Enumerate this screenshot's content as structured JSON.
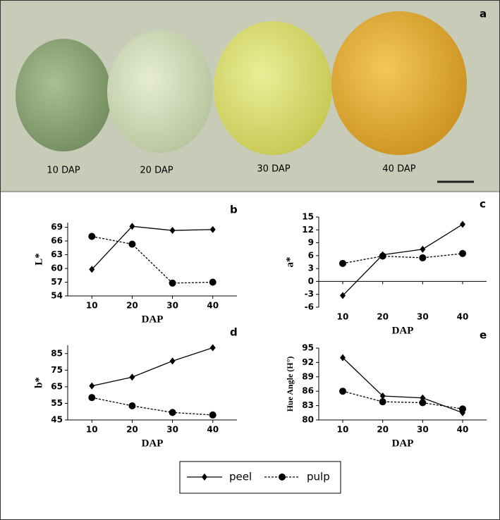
{
  "photo": {
    "label": "a",
    "captions": [
      "10 DAP",
      "20 DAP",
      "30 DAP",
      "40 DAP"
    ]
  },
  "chart_data": [
    {
      "type": "line",
      "label": "b",
      "y_label": "L*",
      "x_label": "DAP",
      "x": [
        10,
        20,
        30,
        40
      ],
      "xlim": [
        4,
        46
      ],
      "xticks": [
        10,
        20,
        30,
        40
      ],
      "ylim": [
        54,
        70
      ],
      "yticks": [
        54,
        57,
        60,
        63,
        66,
        69
      ],
      "series": [
        {
          "name": "peel",
          "color": "#000000",
          "marker": "diamond",
          "dash": "solid",
          "values": [
            59.8,
            69.2,
            68.3,
            68.5
          ]
        },
        {
          "name": "pulp",
          "color": "#000000",
          "marker": "circle",
          "dash": "dashed",
          "values": [
            67.0,
            65.3,
            56.8,
            57.0
          ]
        }
      ]
    },
    {
      "type": "line",
      "label": "c",
      "y_label": "a*",
      "x_label": "DAP",
      "x": [
        10,
        20,
        30,
        40
      ],
      "xlim": [
        4,
        46
      ],
      "xticks": [
        10,
        20,
        30,
        40
      ],
      "ylim": [
        -6,
        15
      ],
      "yticks": [
        -6,
        -3,
        0,
        3,
        6,
        9,
        12,
        15
      ],
      "series": [
        {
          "color": "#000000",
          "marker": "diamond",
          "dash": "solid",
          "values": [
            -3.3,
            6.2,
            7.5,
            13.3
          ]
        },
        {
          "color": "#000000",
          "marker": "circle",
          "dash": "dashed",
          "values": [
            4.2,
            5.9,
            5.5,
            6.5
          ]
        }
      ]
    },
    {
      "type": "line",
      "label": "d",
      "y_label": "b*",
      "x_label": "DAP",
      "x": [
        10,
        20,
        30,
        40
      ],
      "xlim": [
        4,
        46
      ],
      "xticks": [
        10,
        20,
        30,
        40
      ],
      "ylim": [
        45,
        90
      ],
      "yticks": [
        45,
        55,
        65,
        75,
        85
      ],
      "series": [
        {
          "color": "#000000",
          "marker": "diamond",
          "dash": "solid",
          "values": [
            65.5,
            70.8,
            80.5,
            88.5
          ]
        },
        {
          "color": "#000000",
          "marker": "circle",
          "dash": "dashed",
          "values": [
            58.5,
            53.5,
            49.5,
            48.0
          ]
        }
      ]
    },
    {
      "type": "line",
      "label": "e",
      "y_label": "Hue Angle (H°)",
      "x_label": "DAP",
      "x": [
        10,
        20,
        30,
        40
      ],
      "xlim": [
        4,
        46
      ],
      "xticks": [
        10,
        20,
        30,
        40
      ],
      "ylim": [
        80,
        95
      ],
      "yticks": [
        80,
        83,
        86,
        89,
        92,
        95
      ],
      "series": [
        {
          "color": "#000000",
          "marker": "diamond",
          "dash": "solid",
          "values": [
            93.0,
            85.0,
            84.6,
            81.5
          ]
        },
        {
          "color": "#000000",
          "marker": "circle",
          "dash": "dashed",
          "values": [
            86.0,
            83.8,
            83.6,
            82.3
          ]
        }
      ]
    }
  ]
}
